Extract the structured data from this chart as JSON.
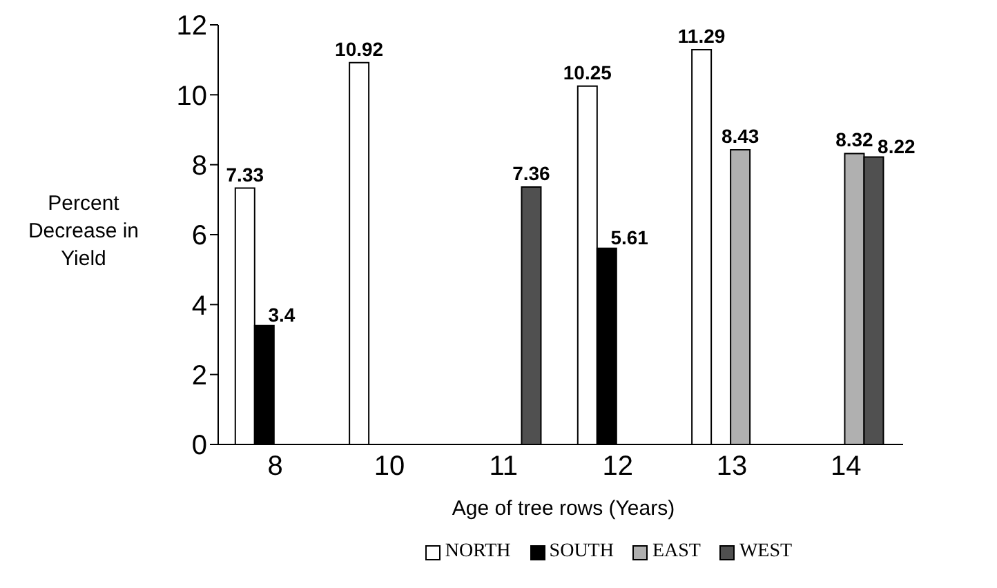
{
  "chart_data": {
    "type": "bar",
    "xlabel": "Age of tree rows (Years)",
    "ylabel": "Percent Decrease in Yield",
    "categories": [
      "8",
      "10",
      "11",
      "12",
      "13",
      "14"
    ],
    "series": [
      {
        "name": "NORTH",
        "color": "#ffffff",
        "values": [
          7.33,
          10.92,
          null,
          10.25,
          11.29,
          null
        ]
      },
      {
        "name": "SOUTH",
        "color": "#000000",
        "values": [
          3.4,
          null,
          null,
          5.61,
          null,
          null
        ]
      },
      {
        "name": "EAST",
        "color": "#b0b0b0",
        "values": [
          null,
          null,
          null,
          null,
          8.43,
          8.32
        ]
      },
      {
        "name": "WEST",
        "color": "#505050",
        "values": [
          null,
          null,
          7.36,
          null,
          null,
          8.22
        ]
      }
    ],
    "ylim": [
      0,
      12
    ],
    "yticks": [
      0,
      2,
      4,
      6,
      8,
      10,
      12
    ],
    "grid": false,
    "legend": "bottom",
    "data_labels": true
  }
}
